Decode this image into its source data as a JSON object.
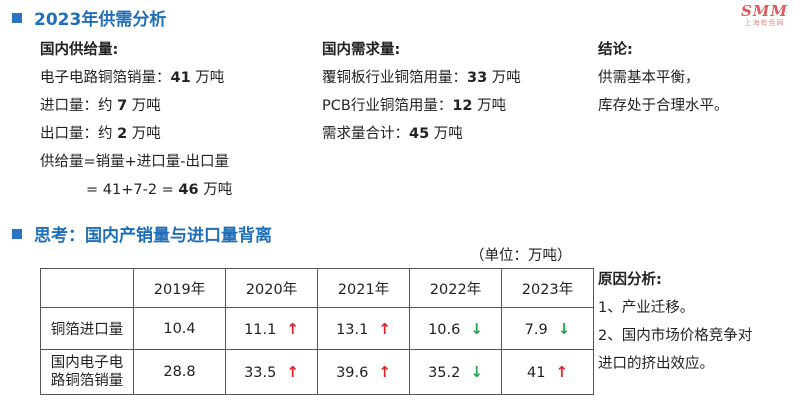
{
  "logo": {
    "mark": "SMM",
    "sub": "上海有色网"
  },
  "section1": {
    "title": "2023年供需分析"
  },
  "supply": {
    "heading": "国内供给量:",
    "items": [
      {
        "label": "电子电路铜箔销量：",
        "value": "41",
        "unit": " 万吨"
      },
      {
        "label": "进口量：约 ",
        "value": "7",
        "unit": " 万吨"
      },
      {
        "label": "出口量：约 ",
        "value": "2",
        "unit": " 万吨"
      }
    ],
    "formula": "供给量=销量+进口量-出口量",
    "calc_prefix": "= 41+7-2 = ",
    "calc_value": "46",
    "calc_unit": " 万吨"
  },
  "demand": {
    "heading": "国内需求量:",
    "items": [
      {
        "label": "覆铜板行业铜箔用量：",
        "value": "33",
        "unit": " 万吨"
      },
      {
        "label": "PCB行业铜箔用量：",
        "value": "12",
        "unit": " 万吨"
      },
      {
        "label": "需求量合计：",
        "value": "45",
        "unit": " 万吨"
      }
    ]
  },
  "conclusion": {
    "heading": "结论:",
    "lines": [
      "供需基本平衡，",
      "库存处于合理水平。"
    ]
  },
  "section2": {
    "title": "思考：国内产销量与进口量背离"
  },
  "table": {
    "unit_label": "（单位：万吨）",
    "columns": [
      "",
      "2019年",
      "2020年",
      "2021年",
      "2022年",
      "2023年"
    ],
    "rows": [
      {
        "label": "铜箔进口量",
        "cells": [
          {
            "value": "10.4",
            "trend": ""
          },
          {
            "value": "11.1",
            "trend": "up"
          },
          {
            "value": "13.1",
            "trend": "up"
          },
          {
            "value": "10.6",
            "trend": "down"
          },
          {
            "value": "7.9",
            "trend": "down"
          }
        ]
      },
      {
        "label": "国内电子电路铜箔销量",
        "label_lines": [
          "国内电子电",
          "路铜箔销量"
        ],
        "cells": [
          {
            "value": "28.8",
            "trend": ""
          },
          {
            "value": "33.5",
            "trend": "up"
          },
          {
            "value": "39.6",
            "trend": "up"
          },
          {
            "value": "35.2",
            "trend": "down"
          },
          {
            "value": "41",
            "trend": "up"
          }
        ]
      }
    ]
  },
  "reasons": {
    "heading": "原因分析:",
    "lines": [
      "1、产业迁移。",
      "2、国内市场价格竞争对",
      "进口的挤出效应。"
    ]
  },
  "colors": {
    "accent": "#1f6fb8",
    "up": "#e0242a",
    "down": "#2aa24a"
  }
}
